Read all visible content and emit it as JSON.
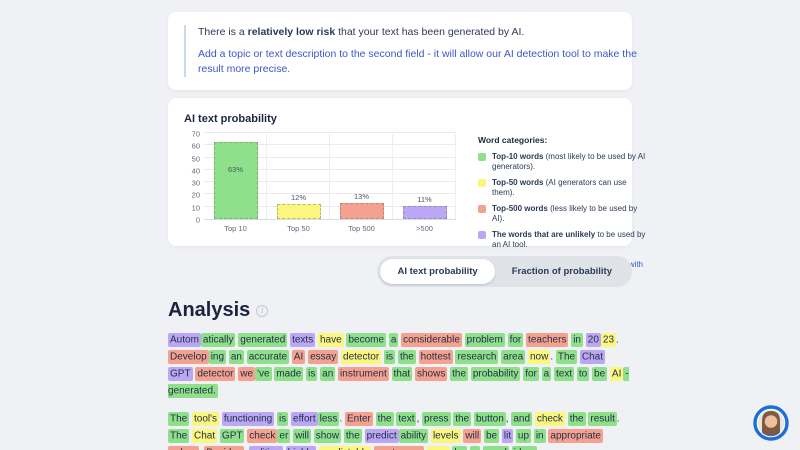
{
  "notice": {
    "line1_prefix": "There is a ",
    "line1_bold": "relatively low risk",
    "line1_suffix": " that your text has been generated by AI.",
    "line2": "Add a topic or text description to the second field - it will allow our AI detection tool to make the result more precise."
  },
  "chart_card": {
    "title": "AI text probability",
    "legend_title": "Word categories:",
    "legend_items": [
      {
        "color": "#8fe08a",
        "bold": "Top-10 words",
        "rest": " (most likely to be used by AI generators)."
      },
      {
        "color": "#faf67e",
        "bold": "Top-50 words",
        "rest": " (AI generators can use them)."
      },
      {
        "color": "#f5a18f",
        "bold": "Top-500 words",
        "rest": " (less likely to be used by AI)."
      },
      {
        "color": "#bba7f4",
        "bold": "The words that are unlikely",
        "rest": " to be used by an AI tool."
      }
    ],
    "legend_note": "An AI-generated text will be colored green with a few yellow pieces."
  },
  "chart_data": {
    "type": "bar",
    "title": "AI text probability",
    "categories": [
      "Top 10",
      "Top 50",
      "Top 500",
      ">500"
    ],
    "values": [
      63,
      12,
      13,
      11
    ],
    "value_labels": [
      "63%",
      "12%",
      "13%",
      "11%"
    ],
    "bar_colors": [
      "#8fe08a",
      "#faf67e",
      "#f5a18f",
      "#bba7f4"
    ],
    "ylim": [
      0,
      70
    ],
    "yticks": [
      0,
      10,
      20,
      30,
      40,
      50,
      60,
      70
    ],
    "grid": true,
    "legend_position": "right-panel"
  },
  "tabs": [
    {
      "label": "AI text probability",
      "active": true
    },
    {
      "label": "Fraction of probability",
      "active": false
    }
  ],
  "analysis": {
    "heading": "Analysis",
    "highlight_colors": {
      "g": "#8fe08a",
      "y": "#faf67e",
      "s": "#f5a18f",
      "p": "#bba7f4",
      "n": "transparent"
    },
    "paragraphs": [
      [
        {
          "t": "Autom",
          "c": "p",
          "j": true
        },
        {
          "t": "atically",
          "c": "g"
        },
        {
          "t": "generated",
          "c": "g"
        },
        {
          "t": "texts",
          "c": "p"
        },
        {
          "t": "have",
          "c": "y"
        },
        {
          "t": "become",
          "c": "g"
        },
        {
          "t": "a",
          "c": "g"
        },
        {
          "t": "considerable",
          "c": "s"
        },
        {
          "t": "problem",
          "c": "g"
        },
        {
          "t": "for",
          "c": "g"
        },
        {
          "t": "teachers",
          "c": "s"
        },
        {
          "t": "in",
          "c": "g"
        },
        {
          "t": "20",
          "c": "p",
          "j": true
        },
        {
          "t": "23",
          "c": "y",
          "j": true
        },
        {
          "t": ".",
          "c": "n"
        },
        {
          "t": "Develop",
          "c": "s",
          "j": true
        },
        {
          "t": "ing",
          "c": "g"
        },
        {
          "t": "an",
          "c": "g"
        },
        {
          "t": "accurate",
          "c": "g"
        },
        {
          "t": "AI",
          "c": "s"
        },
        {
          "t": "essay",
          "c": "s"
        },
        {
          "t": "detector",
          "c": "y"
        },
        {
          "t": "is",
          "c": "g"
        },
        {
          "t": "the",
          "c": "g"
        },
        {
          "t": "hottest",
          "c": "s"
        },
        {
          "t": "research",
          "c": "g"
        },
        {
          "t": "area",
          "c": "g"
        },
        {
          "t": "now",
          "c": "y",
          "j": true
        },
        {
          "t": ".",
          "c": "n"
        },
        {
          "t": "The",
          "c": "g"
        },
        {
          "t": "Chat",
          "c": "p"
        },
        {
          "t": "GPT",
          "c": "p"
        },
        {
          "t": "detector",
          "c": "s"
        },
        {
          "t": "we",
          "c": "s",
          "j": true
        },
        {
          "t": "'ve",
          "c": "g"
        },
        {
          "t": "made",
          "c": "g"
        },
        {
          "t": "is",
          "c": "g"
        },
        {
          "t": "an",
          "c": "g"
        },
        {
          "t": "instrument",
          "c": "s"
        },
        {
          "t": "that",
          "c": "g"
        },
        {
          "t": "shows",
          "c": "s"
        },
        {
          "t": "the",
          "c": "g"
        },
        {
          "t": "probability",
          "c": "g"
        },
        {
          "t": "for",
          "c": "g"
        },
        {
          "t": "a",
          "c": "g"
        },
        {
          "t": "text",
          "c": "g"
        },
        {
          "t": "to",
          "c": "g"
        },
        {
          "t": "be",
          "c": "g"
        },
        {
          "t": "AI",
          "c": "y",
          "j": true
        },
        {
          "t": "-generated.",
          "c": "g"
        }
      ],
      [
        {
          "t": "The",
          "c": "g"
        },
        {
          "t": "tool's",
          "c": "y"
        },
        {
          "t": "functioning",
          "c": "p"
        },
        {
          "t": "is",
          "c": "g"
        },
        {
          "t": "effort",
          "c": "p",
          "j": true
        },
        {
          "t": "less",
          "c": "g",
          "j": true
        },
        {
          "t": ".",
          "c": "n"
        },
        {
          "t": "Enter",
          "c": "s"
        },
        {
          "t": "the",
          "c": "g"
        },
        {
          "t": "text",
          "c": "g",
          "j": true
        },
        {
          "t": ",",
          "c": "n"
        },
        {
          "t": "press",
          "c": "g"
        },
        {
          "t": "the",
          "c": "g"
        },
        {
          "t": "button",
          "c": "g",
          "j": true
        },
        {
          "t": ",",
          "c": "n"
        },
        {
          "t": "and",
          "c": "g"
        },
        {
          "t": "check",
          "c": "y"
        },
        {
          "t": "the",
          "c": "g"
        },
        {
          "t": "result",
          "c": "g",
          "j": true
        },
        {
          "t": ".",
          "c": "n"
        },
        {
          "t": "The",
          "c": "g"
        },
        {
          "t": "Chat",
          "c": "y"
        },
        {
          "t": "GPT",
          "c": "g"
        },
        {
          "t": "check",
          "c": "s",
          "j": true
        },
        {
          "t": "er",
          "c": "g"
        },
        {
          "t": "will",
          "c": "g"
        },
        {
          "t": "show",
          "c": "g"
        },
        {
          "t": "the",
          "c": "g"
        },
        {
          "t": "predict",
          "c": "p",
          "j": true
        },
        {
          "t": "ability",
          "c": "g"
        },
        {
          "t": "levels",
          "c": "y"
        },
        {
          "t": "will",
          "c": "s"
        },
        {
          "t": "be",
          "c": "g"
        },
        {
          "t": "lit",
          "c": "p"
        },
        {
          "t": "up",
          "c": "g"
        },
        {
          "t": "in",
          "c": "g"
        },
        {
          "t": "appropriate",
          "c": "s"
        },
        {
          "t": "colors",
          "c": "s",
          "j": true
        },
        {
          "t": ".",
          "c": "n"
        },
        {
          "t": "Besides",
          "c": "s",
          "j": true
        },
        {
          "t": ",",
          "c": "n"
        },
        {
          "t": "editing",
          "c": "p"
        },
        {
          "t": "highly",
          "c": "p"
        },
        {
          "t": "predictable",
          "c": "y"
        },
        {
          "t": "sentences",
          "c": "s"
        },
        {
          "t": "may",
          "c": "y"
        },
        {
          "t": "be",
          "c": "g"
        },
        {
          "t": "a",
          "c": "g"
        },
        {
          "t": "good",
          "c": "g"
        },
        {
          "t": "idea.",
          "c": "g"
        }
      ]
    ]
  },
  "colors": {
    "page_bg": "#eff1f4",
    "card_bg": "#ffffff",
    "text_navy": "#1d2840",
    "link_blue": "#3d56c6",
    "tab_bar_bg": "#dfe3e8",
    "chat_ring_blue": "#1b6fd8"
  }
}
